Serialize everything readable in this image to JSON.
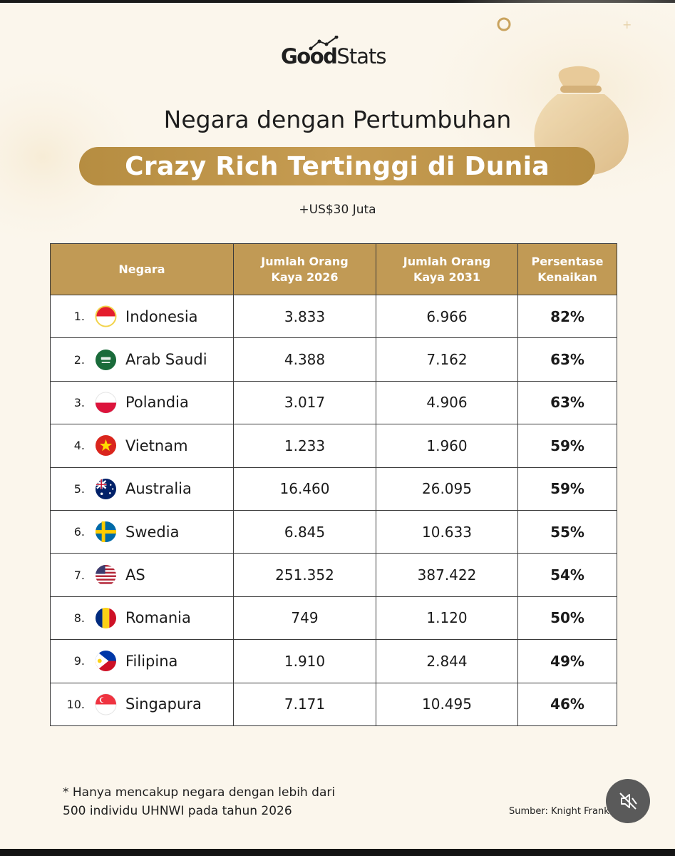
{
  "brand": {
    "logo_bold": "Good",
    "logo_light": "Stats"
  },
  "colors": {
    "accent": "#c19a55",
    "background": "#fbf6ec",
    "border": "#3a3a3a"
  },
  "chart_data": {
    "type": "table",
    "title": "Negara dengan Pertumbuhan",
    "title_highlight": "Crazy Rich Tertinggi di Dunia",
    "subtitle": "+US$30 Juta",
    "columns": [
      "Negara",
      "Jumlah Orang\nKaya 2026",
      "Jumlah Orang\nKaya 2031",
      "Persentase\nKenaikan"
    ],
    "rows": [
      {
        "rank": "1.",
        "country": "Indonesia",
        "flag": "indonesia-flag",
        "v2026": "3.833",
        "v2031": "6.966",
        "pct": "82%"
      },
      {
        "rank": "2.",
        "country": "Arab Saudi",
        "flag": "saudi-arabia-flag",
        "v2026": "4.388",
        "v2031": "7.162",
        "pct": "63%"
      },
      {
        "rank": "3.",
        "country": "Polandia",
        "flag": "poland-flag",
        "v2026": "3.017",
        "v2031": "4.906",
        "pct": "63%"
      },
      {
        "rank": "4.",
        "country": "Vietnam",
        "flag": "vietnam-flag",
        "v2026": "1.233",
        "v2031": "1.960",
        "pct": "59%"
      },
      {
        "rank": "5.",
        "country": "Australia",
        "flag": "australia-flag",
        "v2026": "16.460",
        "v2031": "26.095",
        "pct": "59%"
      },
      {
        "rank": "6.",
        "country": "Swedia",
        "flag": "sweden-flag",
        "v2026": "6.845",
        "v2031": "10.633",
        "pct": "55%"
      },
      {
        "rank": "7.",
        "country": "AS",
        "flag": "usa-flag",
        "v2026": "251.352",
        "v2031": "387.422",
        "pct": "54%"
      },
      {
        "rank": "8.",
        "country": "Romania",
        "flag": "romania-flag",
        "v2026": "749",
        "v2031": "1.120",
        "pct": "50%"
      },
      {
        "rank": "9.",
        "country": "Filipina",
        "flag": "philippines-flag",
        "v2026": "1.910",
        "v2031": "2.844",
        "pct": "49%"
      },
      {
        "rank": "10.",
        "country": "Singapura",
        "flag": "singapore-flag",
        "v2026": "7.171",
        "v2031": "10.495",
        "pct": "46%"
      }
    ]
  },
  "footnote": {
    "line1": "* Hanya mencakup negara dengan lebih dari",
    "line2": "500 individu UHNWI pada tahun 2026"
  },
  "source": "Sumber: Knight Frank",
  "controls": {
    "mute_icon": "speaker-muted-icon"
  }
}
